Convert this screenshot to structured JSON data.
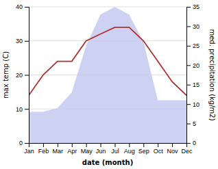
{
  "chart_data": {
    "type": "line",
    "categories": [
      "Jan",
      "Feb",
      "Mar",
      "Apr",
      "May",
      "Jun",
      "Jul",
      "Aug",
      "Sep",
      "Oct",
      "Nov",
      "Dec"
    ],
    "xlabel": "date (month)",
    "ylabel": "max temp (C)",
    "y2label": "med. precipitation (kg/m2)",
    "series": [
      {
        "type": "area",
        "axis": "y2",
        "color": "#c5caf0",
        "values": [
          8,
          8,
          9,
          13,
          25,
          33,
          35,
          33,
          26,
          11,
          11,
          11
        ]
      },
      {
        "type": "line",
        "color": "#b03030",
        "values": [
          14.0,
          20.0,
          24.0,
          24.0,
          30.0,
          32.0,
          34.0,
          34.0,
          30.0,
          24.0,
          18.0,
          14.0
        ]
      }
    ],
    "ylim": [
      0,
      40
    ],
    "yticks": [
      0,
      10,
      20,
      30,
      40
    ],
    "y2lim": [
      0,
      35
    ],
    "y2ticks": [
      0,
      5,
      10,
      15,
      20,
      25,
      30,
      35
    ],
    "grid": true
  }
}
